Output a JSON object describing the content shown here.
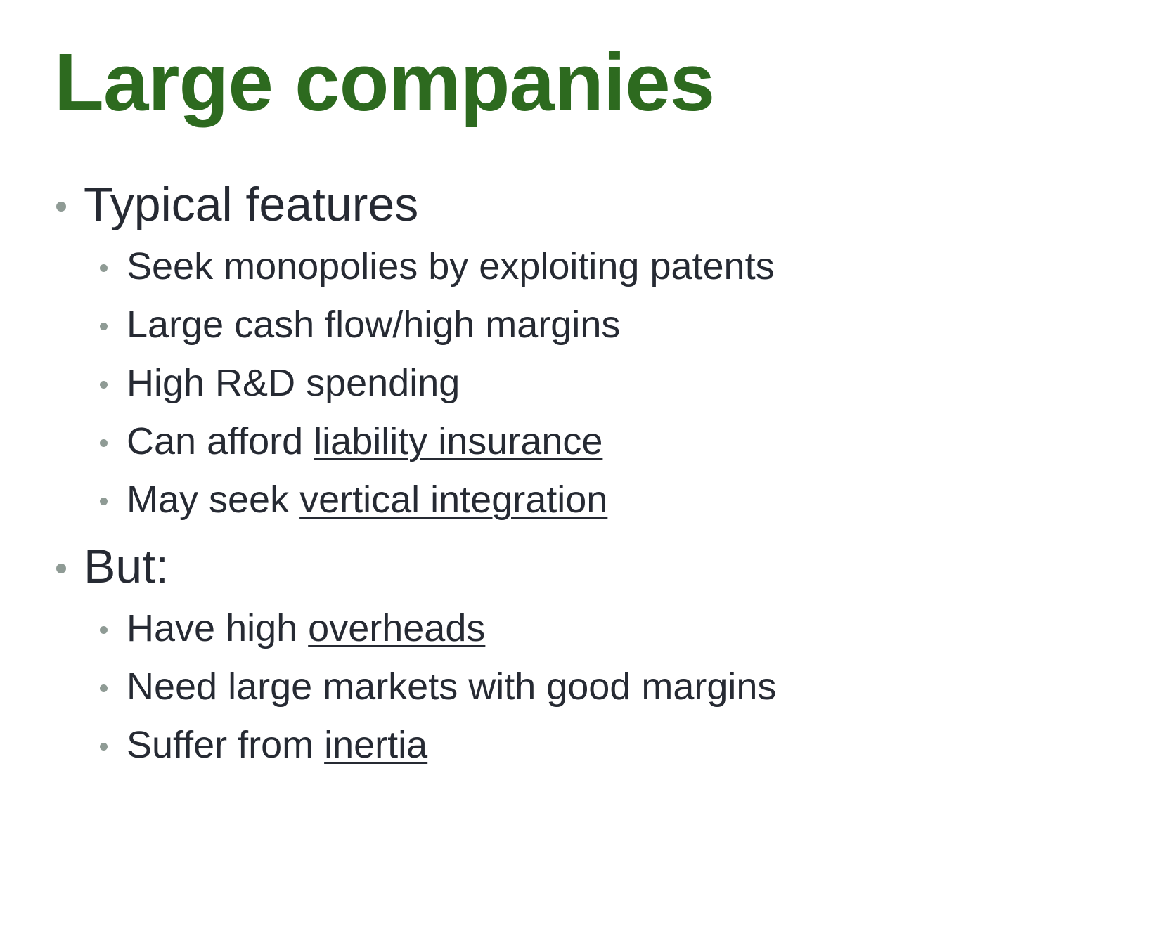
{
  "slide": {
    "title": "Large companies",
    "colors": {
      "title": "#2d6a1f",
      "text": "#262a33",
      "bullet": "#8f9b95",
      "background": "#ffffff"
    },
    "sections": [
      {
        "heading": "Typical features",
        "items": [
          {
            "text": "Seek monopolies by exploiting patents",
            "link": ""
          },
          {
            "text": "Large cash flow/high margins",
            "link": ""
          },
          {
            "text": "High R&D spending",
            "link": ""
          },
          {
            "text": "Can afford ",
            "link": "liability insurance"
          },
          {
            "text": "May seek ",
            "link": "vertical integration"
          }
        ]
      },
      {
        "heading": "But:",
        "items": [
          {
            "text": "Have high ",
            "link": "overheads"
          },
          {
            "text": "Need large markets with good margins",
            "link": ""
          },
          {
            "text": "Suffer from ",
            "link": "inertia"
          }
        ]
      }
    ]
  }
}
